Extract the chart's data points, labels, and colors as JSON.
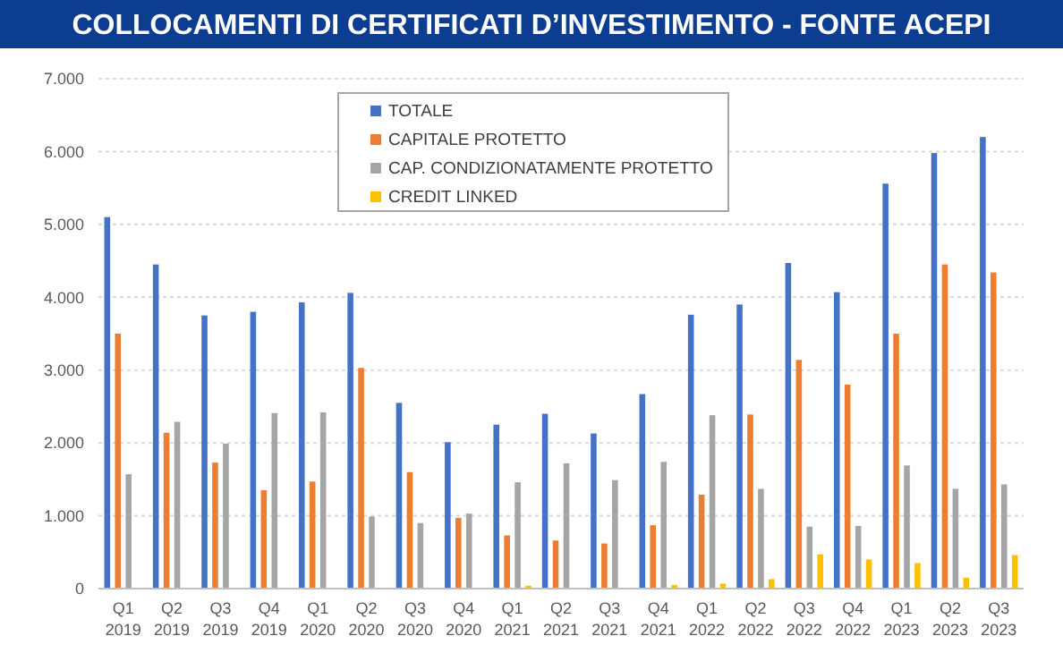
{
  "chart_data": {
    "type": "bar",
    "title": "COLLOCAMENTI DI CERTIFICATI D’INVESTIMENTO - FONTE ACEPI",
    "categories": [
      "Q1\n2019",
      "Q2\n2019",
      "Q3\n2019",
      "Q4\n2019",
      "Q1\n2020",
      "Q2\n2020",
      "Q3\n2020",
      "Q4\n2020",
      "Q1\n2021",
      "Q2\n2021",
      "Q3\n2021",
      "Q4\n2021",
      "Q1\n2022",
      "Q2\n2022",
      "Q3\n2022",
      "Q4\n2022",
      "Q1\n2023",
      "Q2\n2023",
      "Q3\n2023"
    ],
    "series": [
      {
        "name": "TOTALE",
        "color": "#4472c4",
        "values": [
          5100,
          4450,
          3750,
          3800,
          3930,
          4060,
          2550,
          2010,
          2250,
          2400,
          2130,
          2670,
          3760,
          3900,
          4470,
          4070,
          5560,
          5980,
          6200
        ]
      },
      {
        "name": "CAPITALE PROTETTO",
        "color": "#ed7d31",
        "values": [
          3500,
          2140,
          1730,
          1350,
          1470,
          3030,
          1600,
          970,
          730,
          660,
          620,
          870,
          1290,
          2390,
          3140,
          2800,
          3500,
          4450,
          4340
        ]
      },
      {
        "name": "CAP. CONDIZIONATAMENTE PROTETTO",
        "color": "#a5a5a5",
        "values": [
          1570,
          2290,
          1990,
          2410,
          2420,
          990,
          900,
          1030,
          1460,
          1720,
          1490,
          1740,
          2380,
          1370,
          850,
          860,
          1690,
          1370,
          1430
        ]
      },
      {
        "name": "CREDIT LINKED",
        "color": "#ffc000",
        "values": [
          0,
          0,
          0,
          0,
          0,
          0,
          10,
          0,
          40,
          10,
          10,
          50,
          70,
          130,
          470,
          400,
          350,
          150,
          460
        ]
      }
    ],
    "ylim": [
      0,
      7000
    ],
    "yticks": [
      {
        "value": 0,
        "label": "0"
      },
      {
        "value": 1000,
        "label": "1.000"
      },
      {
        "value": 2000,
        "label": "2.000"
      },
      {
        "value": 3000,
        "label": "3.000"
      },
      {
        "value": 4000,
        "label": "4.000"
      },
      {
        "value": 5000,
        "label": "5.000"
      },
      {
        "value": 6000,
        "label": "6.000"
      },
      {
        "value": 7000,
        "label": "7.000"
      }
    ],
    "grid": "y",
    "legend": "top"
  }
}
